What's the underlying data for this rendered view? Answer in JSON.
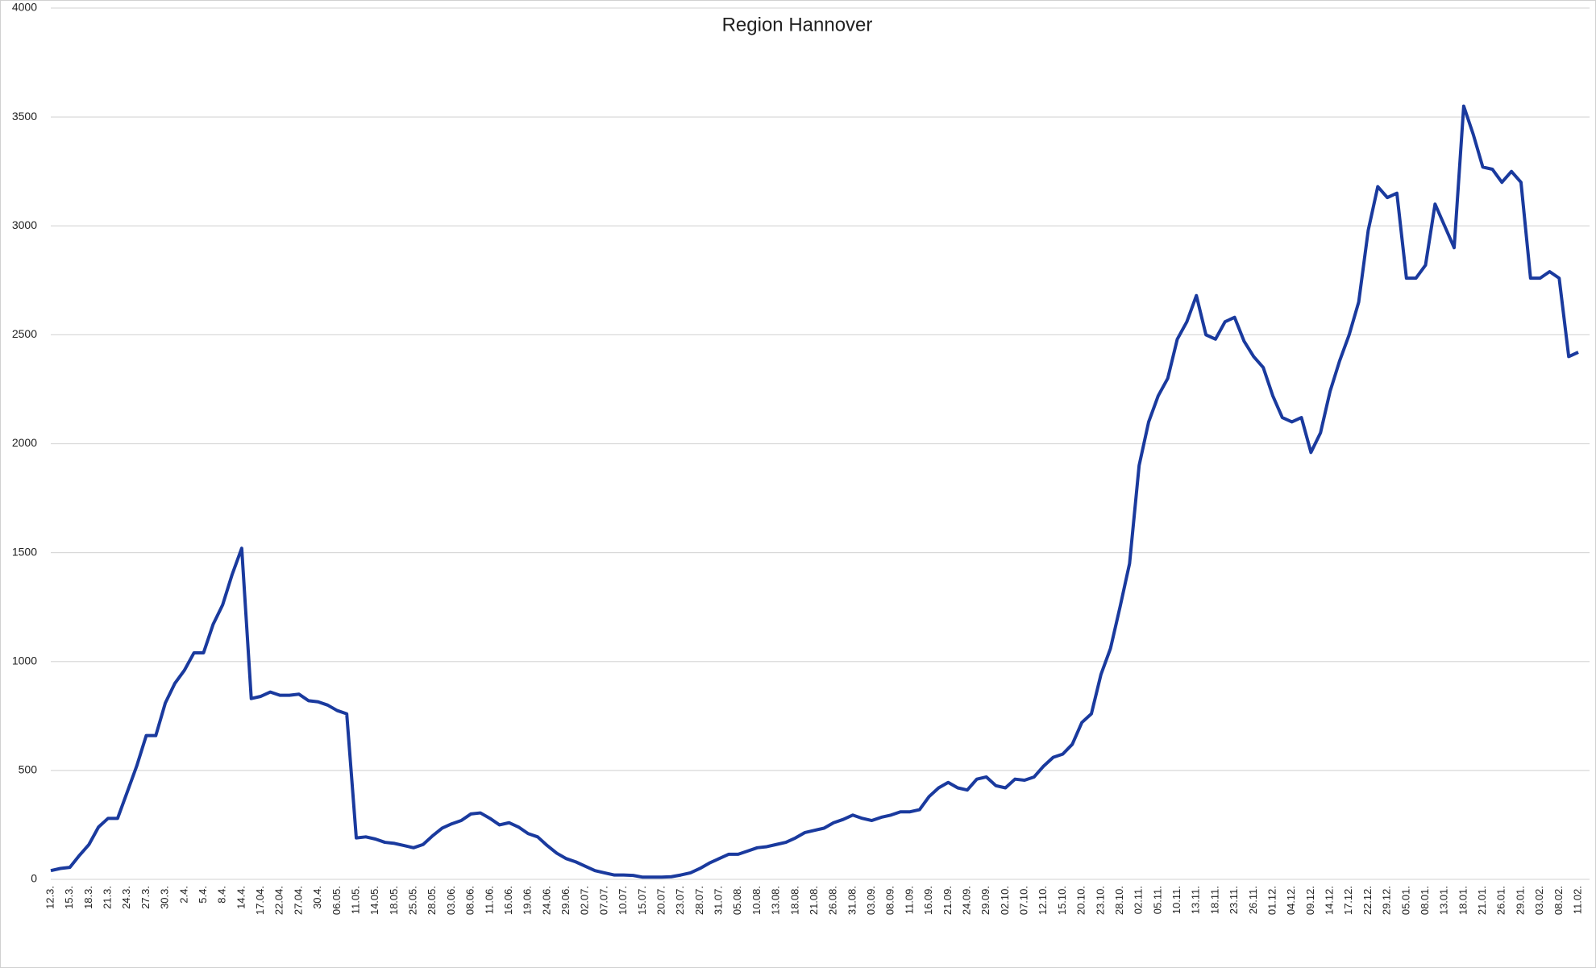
{
  "chart_data": {
    "type": "line",
    "title": "Region Hannover",
    "categories": [
      "12.3.",
      null,
      "15.3.",
      null,
      "18.3.",
      null,
      "21.3.",
      null,
      "24.3.",
      null,
      "27.3.",
      null,
      "30.3.",
      null,
      "2.4.",
      null,
      "5.4.",
      null,
      "8.4.",
      null,
      "14.4.",
      null,
      "17.04.",
      null,
      "22.04.",
      null,
      "27.04.",
      null,
      "30.4.",
      null,
      "06.05.",
      null,
      "11.05.",
      null,
      "14.05.",
      null,
      "18.05.",
      null,
      "25.05.",
      null,
      "28.05.",
      null,
      "03.06.",
      null,
      "08.06.",
      null,
      "11.06.",
      null,
      "16.06.",
      null,
      "19.06.",
      null,
      "24.06.",
      null,
      "29.06.",
      null,
      "02.07.",
      null,
      "07.07.",
      null,
      "10.07.",
      null,
      "15.07.",
      null,
      "20.07.",
      null,
      "23.07.",
      null,
      "28.07.",
      null,
      "31.07.",
      null,
      "05.08.",
      null,
      "10.08.",
      null,
      "13.08.",
      null,
      "18.08.",
      null,
      "21.08.",
      null,
      "26.08.",
      null,
      "31.08.",
      null,
      "03.09.",
      null,
      "08.09.",
      null,
      "11.09.",
      null,
      "16.09.",
      null,
      "21.09.",
      null,
      "24.09.",
      null,
      "29.09.",
      null,
      "02.10.",
      null,
      "07.10.",
      null,
      "12.10.",
      null,
      "15.10.",
      null,
      "20.10.",
      null,
      "23.10.",
      null,
      "28.10.",
      null,
      "02.11.",
      null,
      "05.11.",
      null,
      "10.11.",
      null,
      "13.11.",
      null,
      "18.11.",
      null,
      "23.11.",
      null,
      "26.11.",
      null,
      "01.12.",
      null,
      "04.12.",
      null,
      "09.12.",
      null,
      "14.12.",
      null,
      "17.12.",
      null,
      "22.12.",
      null,
      "29.12.",
      null,
      "05.01.",
      null,
      "08.01.",
      null,
      "13.01.",
      null,
      "18.01.",
      null,
      "21.01.",
      null,
      "26.01.",
      null,
      "29.01.",
      null,
      "03.02.",
      null,
      "08.02.",
      null,
      "11.02."
    ],
    "series": [
      {
        "color": "#1a3a9e",
        "values": [
          40,
          50,
          55,
          110,
          160,
          240,
          280,
          280,
          400,
          520,
          660,
          660,
          810,
          900,
          960,
          1040,
          1040,
          1170,
          1260,
          1400,
          1520,
          830,
          840,
          860,
          845,
          845,
          850,
          820,
          815,
          800,
          775,
          760,
          190,
          195,
          185,
          170,
          165,
          155,
          145,
          160,
          200,
          235,
          255,
          270,
          300,
          305,
          280,
          250,
          260,
          240,
          210,
          195,
          155,
          120,
          95,
          80,
          60,
          40,
          30,
          20,
          20,
          18,
          10,
          10,
          10,
          12,
          20,
          30,
          50,
          75,
          95,
          115,
          115,
          130,
          145,
          150,
          160,
          170,
          190,
          215,
          225,
          235,
          260,
          275,
          295,
          280,
          270,
          285,
          295,
          310,
          310,
          320,
          380,
          420,
          445,
          420,
          410,
          460,
          470,
          430,
          420,
          460,
          455,
          470,
          520,
          560,
          575,
          620,
          720,
          760,
          940,
          1060,
          1250,
          1450,
          1900,
          2100,
          2220,
          2300,
          2480,
          2560,
          2680,
          2500,
          2480,
          2560,
          2580,
          2470,
          2400,
          2350,
          2220,
          2120,
          2100,
          2120,
          1960,
          2050,
          2240,
          2380,
          2500,
          2650,
          2980,
          3180,
          3130,
          3150,
          2760,
          2760,
          2820,
          3100,
          3000,
          2900,
          3550,
          3420,
          3270,
          3260,
          3200,
          3250,
          3200,
          2760,
          2760,
          2790,
          2760,
          2400,
          2420
        ]
      }
    ],
    "ylim": [
      0,
      4000
    ],
    "yticks": [
      0,
      500,
      1000,
      1500,
      2000,
      2500,
      3000,
      3500,
      4000
    ],
    "grid": true
  }
}
